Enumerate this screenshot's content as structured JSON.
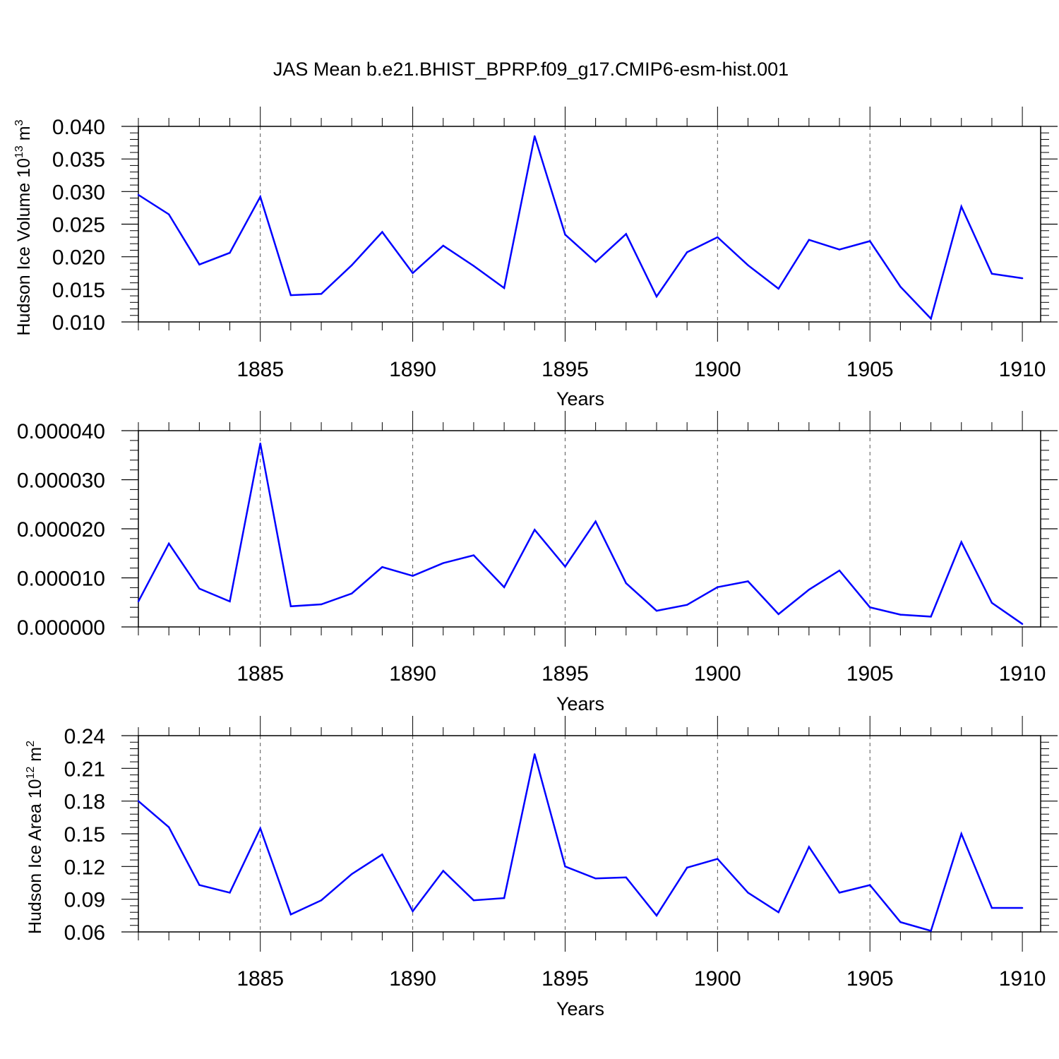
{
  "title": "JAS Mean b.e21.BHIST_BPRP.f09_g17.CMIP6-esm-hist.001",
  "line_color": "#0000ff",
  "grid_color": "#555555",
  "chart_data": [
    {
      "type": "line",
      "ylabel": {
        "text": "Hudson Ice Volume 10",
        "sup": "13",
        "unit": " m",
        "unit_sup": "3"
      },
      "xlabel": "Years",
      "xlim": [
        1881,
        1910
      ],
      "ylim": [
        0.01,
        0.04
      ],
      "yticks": [
        0.01,
        0.015,
        0.02,
        0.025,
        0.03,
        0.035,
        0.04
      ],
      "ytick_labels": [
        "0.010",
        "0.015",
        "0.020",
        "0.025",
        "0.030",
        "0.035",
        "0.040"
      ],
      "xticks": [
        1885,
        1890,
        1895,
        1900,
        1905,
        1910
      ],
      "xtick_labels": [
        "1885",
        "1890",
        "1895",
        "1900",
        "1905",
        "1910"
      ],
      "grid": "x-major dashed",
      "x": [
        1881,
        1882,
        1883,
        1884,
        1885,
        1886,
        1887,
        1888,
        1889,
        1890,
        1891,
        1892,
        1893,
        1894,
        1895,
        1896,
        1897,
        1898,
        1899,
        1900,
        1901,
        1902,
        1903,
        1904,
        1905,
        1906,
        1907,
        1908,
        1909,
        1910
      ],
      "y": [
        0.0295,
        0.0265,
        0.0188,
        0.0206,
        0.0292,
        0.0141,
        0.0143,
        0.0187,
        0.0238,
        0.0175,
        0.0217,
        0.0186,
        0.0152,
        0.0385,
        0.0234,
        0.0192,
        0.0235,
        0.0139,
        0.0207,
        0.023,
        0.0187,
        0.0151,
        0.0226,
        0.0211,
        0.0224,
        0.0154,
        0.0105,
        0.0277,
        0.0174,
        0.0167
      ]
    },
    {
      "type": "line",
      "ylabel": {
        "text": "",
        "sup": "",
        "unit": "",
        "unit_sup": ""
      },
      "xlabel": "Years",
      "xlim": [
        1881,
        1910
      ],
      "ylim": [
        0.0,
        4e-05
      ],
      "yticks": [
        0.0,
        1e-05,
        2e-05,
        3e-05,
        4e-05
      ],
      "ytick_labels": [
        "0.000000",
        "0.000010",
        "0.000020",
        "0.000030",
        "0.000040"
      ],
      "xticks": [
        1885,
        1890,
        1895,
        1900,
        1905,
        1910
      ],
      "xtick_labels": [
        "1885",
        "1890",
        "1895",
        "1900",
        "1905",
        "1910"
      ],
      "grid": "x-major dashed",
      "x": [
        1881,
        1882,
        1883,
        1884,
        1885,
        1886,
        1887,
        1888,
        1889,
        1890,
        1891,
        1892,
        1893,
        1894,
        1895,
        1896,
        1897,
        1898,
        1899,
        1900,
        1901,
        1902,
        1903,
        1904,
        1905,
        1906,
        1907,
        1908,
        1909,
        1910
      ],
      "y": [
        5.2e-06,
        1.7e-05,
        7.8e-06,
        5.2e-06,
        3.74e-05,
        4.2e-06,
        4.6e-06,
        6.8e-06,
        1.22e-05,
        1.04e-05,
        1.3e-05,
        1.46e-05,
        8.1e-06,
        1.98e-05,
        1.23e-05,
        2.15e-05,
        8.9e-06,
        3.3e-06,
        4.5e-06,
        8.1e-06,
        9.3e-06,
        2.6e-06,
        7.6e-06,
        1.15e-05,
        4e-06,
        2.5e-06,
        2.1e-06,
        1.73e-05,
        4.9e-06,
        6e-07
      ]
    },
    {
      "type": "line",
      "ylabel": {
        "text": "Hudson Ice Area 10",
        "sup": "12",
        "unit": " m",
        "unit_sup": "2"
      },
      "xlabel": "Years",
      "xlim": [
        1881,
        1910
      ],
      "ylim": [
        0.06,
        0.24
      ],
      "yticks": [
        0.06,
        0.09,
        0.12,
        0.15,
        0.18,
        0.21,
        0.24
      ],
      "ytick_labels": [
        "0.06",
        "0.09",
        "0.12",
        "0.15",
        "0.18",
        "0.21",
        "0.24"
      ],
      "xticks": [
        1885,
        1890,
        1895,
        1900,
        1905,
        1910
      ],
      "xtick_labels": [
        "1885",
        "1890",
        "1895",
        "1900",
        "1905",
        "1910"
      ],
      "grid": "x-major dashed",
      "x": [
        1881,
        1882,
        1883,
        1884,
        1885,
        1886,
        1887,
        1888,
        1889,
        1890,
        1891,
        1892,
        1893,
        1894,
        1895,
        1896,
        1897,
        1898,
        1899,
        1900,
        1901,
        1902,
        1903,
        1904,
        1905,
        1906,
        1907,
        1908,
        1909,
        1910
      ],
      "y": [
        0.18,
        0.156,
        0.103,
        0.096,
        0.155,
        0.076,
        0.089,
        0.113,
        0.131,
        0.079,
        0.116,
        0.089,
        0.091,
        0.223,
        0.12,
        0.109,
        0.11,
        0.075,
        0.119,
        0.127,
        0.096,
        0.078,
        0.138,
        0.096,
        0.103,
        0.069,
        0.061,
        0.15,
        0.082,
        0.082
      ]
    }
  ]
}
